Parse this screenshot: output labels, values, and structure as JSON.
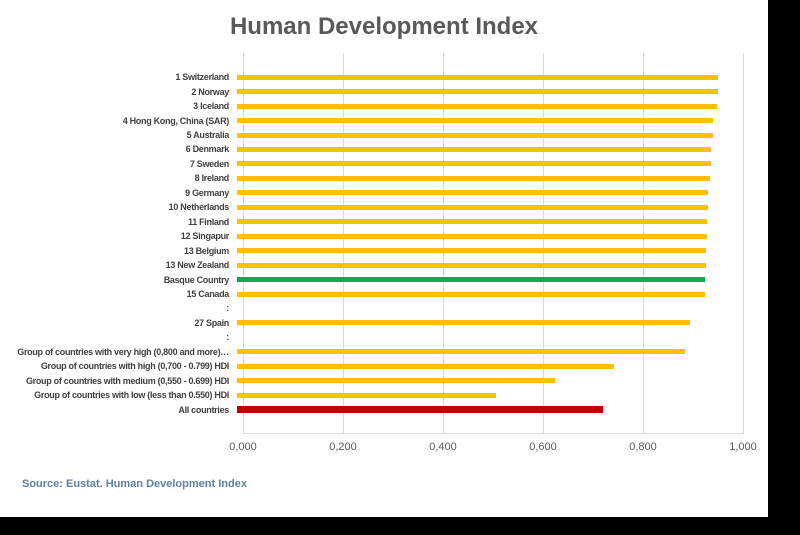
{
  "title": "Human Development Index",
  "source_note": "Source: Eustat. Human Development Index",
  "colors": {
    "bar_default": "#FFC000",
    "bar_highlight": "#00B050",
    "bar_total": "#C00000",
    "grid": "#D9D9D9",
    "title_text": "#595959",
    "label_text": "#404040",
    "axis_text": "#595959",
    "source_text": "#5E7F9F",
    "canvas_bg": "#FFFFFF",
    "frame_bg": "#000000"
  },
  "chart_data": {
    "type": "bar",
    "orientation": "horizontal",
    "title": "Human Development Index",
    "xlabel": "",
    "ylabel": "",
    "xlim": [
      0,
      1
    ],
    "x_tick_labels": [
      "0,000",
      "0,200",
      "0,400",
      "0,600",
      "0,800",
      "1,000"
    ],
    "x_tick_values": [
      0,
      0.2,
      0.4,
      0.6,
      0.8,
      1.0
    ],
    "grid": true,
    "legend": false,
    "rows": [
      {
        "label": "1 Switzerland",
        "value": 0.962,
        "type": "default"
      },
      {
        "label": "2 Norway",
        "value": 0.961,
        "type": "default"
      },
      {
        "label": "3 Iceland",
        "value": 0.959,
        "type": "default"
      },
      {
        "label": "4 Hong Kong, China (SAR)",
        "value": 0.952,
        "type": "default"
      },
      {
        "label": "5 Australia",
        "value": 0.951,
        "type": "default"
      },
      {
        "label": "6 Denmark",
        "value": 0.948,
        "type": "default"
      },
      {
        "label": "7 Sweden",
        "value": 0.947,
        "type": "default"
      },
      {
        "label": "8 Ireland",
        "value": 0.945,
        "type": "default"
      },
      {
        "label": "9 Germany",
        "value": 0.942,
        "type": "default"
      },
      {
        "label": "10 Netherlands",
        "value": 0.941,
        "type": "default"
      },
      {
        "label": "11 Finland",
        "value": 0.94,
        "type": "default"
      },
      {
        "label": "12 Singapur",
        "value": 0.939,
        "type": "default"
      },
      {
        "label": "13 Belgium",
        "value": 0.937,
        "type": "default"
      },
      {
        "label": "13 New Zealand",
        "value": 0.937,
        "type": "default"
      },
      {
        "label": "Basque Country",
        "value": 0.936,
        "type": "highlight"
      },
      {
        "label": "15 Canada",
        "value": 0.936,
        "type": "default"
      },
      {
        "label": ":",
        "value": null,
        "type": "spacer"
      },
      {
        "label": "27 Spain",
        "value": 0.905,
        "type": "default"
      },
      {
        "label": ":",
        "value": null,
        "type": "spacer"
      },
      {
        "label": "Group of countries with very high (0,800 and more)…",
        "value": 0.896,
        "type": "default"
      },
      {
        "label": "Group of countries with high (0,700 - 0.799) HDI",
        "value": 0.754,
        "type": "default"
      },
      {
        "label": "Group of countries with medium (0,550 - 0.699) HDI",
        "value": 0.636,
        "type": "default"
      },
      {
        "label": "Group of countries with low (less than 0.550) HDI",
        "value": 0.518,
        "type": "default"
      },
      {
        "label": "All countries",
        "value": 0.732,
        "type": "total"
      }
    ]
  }
}
